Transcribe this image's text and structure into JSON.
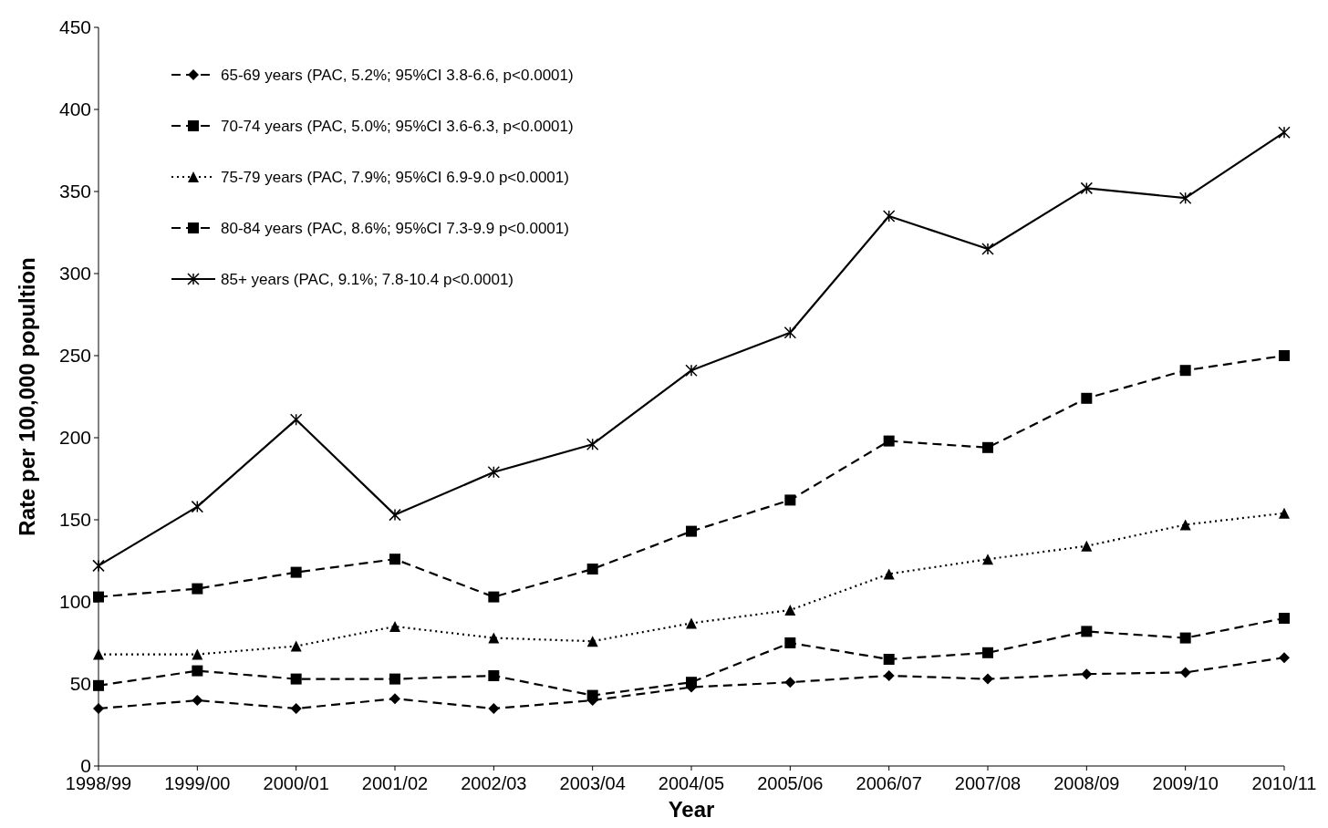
{
  "chart_data": {
    "type": "line",
    "xlabel": "Year",
    "ylabel": "Rate per 100,000 popultion",
    "categories": [
      "1998/99",
      "1999/00",
      "2000/01",
      "2001/02",
      "2002/03",
      "2003/04",
      "2004/05",
      "2005/06",
      "2006/07",
      "2007/08",
      "2008/09",
      "2009/10",
      "2010/11"
    ],
    "series": [
      {
        "name": "65-69 years (PAC, 5.2%; 95%CI 3.8-6.6, p<0.0001)",
        "color": "#000000",
        "marker": "diamond",
        "line_style": "dashed",
        "values": [
          35,
          40,
          35,
          41,
          35,
          40,
          48,
          51,
          55,
          53,
          56,
          57,
          66
        ]
      },
      {
        "name": "70-74 years (PAC, 5.0%; 95%CI 3.6-6.3, p<0.0001)",
        "color": "#000000",
        "marker": "square",
        "line_style": "dashed",
        "values": [
          49,
          58,
          53,
          53,
          55,
          43,
          51,
          75,
          65,
          69,
          82,
          78,
          90
        ]
      },
      {
        "name": "75-79 years (PAC, 7.9%; 95%CI 6.9-9.0 p<0.0001)",
        "color": "#000000",
        "marker": "triangle",
        "line_style": "dotted",
        "values": [
          68,
          68,
          73,
          85,
          78,
          76,
          87,
          95,
          117,
          126,
          134,
          147,
          154
        ]
      },
      {
        "name": "80-84 years (PAC, 8.6%; 95%CI 7.3-9.9 p<0.0001)",
        "color": "#000000",
        "marker": "square",
        "line_style": "dashed",
        "values": [
          103,
          108,
          118,
          126,
          103,
          120,
          143,
          162,
          198,
          194,
          224,
          241,
          250
        ]
      },
      {
        "name": "85+ years (PAC, 9.1%; 7.8-10.4 p<0.0001)",
        "color": "#000000",
        "marker": "cross",
        "line_style": "solid",
        "values": [
          122,
          158,
          211,
          153,
          179,
          196,
          241,
          264,
          335,
          315,
          352,
          346,
          386
        ]
      }
    ],
    "ylim": [
      0,
      450
    ],
    "yticks": [
      0,
      50,
      100,
      150,
      200,
      250,
      300,
      350,
      400,
      450
    ],
    "grid": false,
    "legend": "top left"
  }
}
